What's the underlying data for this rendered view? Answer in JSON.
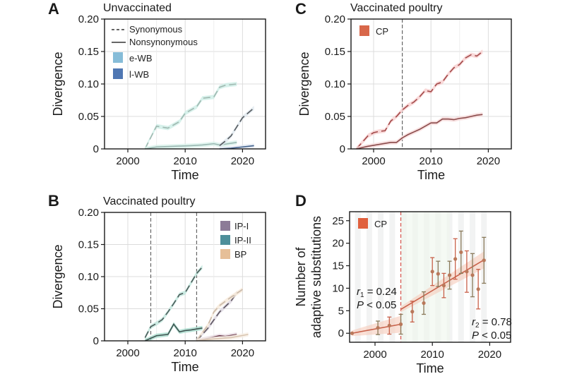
{
  "chart_data": [
    {
      "panel": "A",
      "type": "line",
      "title": "Unvaccinated",
      "xlabel": "Time",
      "ylabel": "Divergence",
      "xlim": [
        1996,
        2024
      ],
      "ylim": [
        0,
        0.2
      ],
      "xticks": [
        "2000",
        "2010",
        "2020"
      ],
      "yticks": [
        "0",
        "0.05",
        "0.10",
        "0.15",
        "0.20"
      ],
      "grid": true,
      "legend": {
        "placement": "top-left",
        "line_styles": [
          {
            "label": "Synonymous",
            "style": "dashed"
          },
          {
            "label": "Nonsynonymous",
            "style": "solid"
          }
        ],
        "groups": [
          {
            "label": "e-WB",
            "color": "#86bcd8"
          },
          {
            "label": "l-WB",
            "color": "#4f77b3"
          }
        ]
      },
      "series": [
        {
          "name": "e-WB Synonymous",
          "group": "e-WB",
          "style": "dashed",
          "color": "#9fb8b0",
          "band": "#cdeee6",
          "x": [
            2003,
            2005,
            2007,
            2009,
            2010,
            2012,
            2013,
            2015,
            2016,
            2017,
            2019
          ],
          "y": [
            0,
            0.035,
            0.032,
            0.042,
            0.055,
            0.065,
            0.078,
            0.08,
            0.095,
            0.098,
            0.1
          ]
        },
        {
          "name": "e-WB Nonsynonymous",
          "group": "e-WB",
          "style": "solid",
          "color": "#9ab8b2",
          "band": "#d8f1ea",
          "x": [
            2003,
            2005,
            2008,
            2011,
            2013,
            2015,
            2016,
            2019
          ],
          "y": [
            0,
            0.003,
            0.004,
            0.005,
            0.006,
            0.008,
            0.006,
            0.01
          ]
        },
        {
          "name": "l-WB Synonymous",
          "group": "l-WB",
          "style": "dashed",
          "color": "#555a5e",
          "band": "#dfe7ee",
          "x": [
            2016,
            2017,
            2018,
            2020,
            2022
          ],
          "y": [
            0.005,
            0.012,
            0.02,
            0.048,
            0.063
          ]
        },
        {
          "name": "l-WB Nonsynonymous",
          "group": "l-WB",
          "style": "solid",
          "color": "#3e5f8a",
          "band": "#e2e8f2",
          "x": [
            2016,
            2018,
            2020,
            2022
          ],
          "y": [
            0,
            0.001,
            0.003,
            0.005
          ]
        }
      ]
    },
    {
      "panel": "B",
      "type": "line",
      "title": "Vaccinated poultry",
      "xlabel": "Time",
      "ylabel": "Divergence",
      "xlim": [
        1996,
        2024
      ],
      "ylim": [
        0,
        0.2
      ],
      "xticks": [
        "2000",
        "2010",
        "2020"
      ],
      "yticks": [
        "0",
        "0.05",
        "0.10",
        "0.15",
        "0.20"
      ],
      "grid": true,
      "vlines": [
        2004,
        2012
      ],
      "legend": {
        "placement": "top-right",
        "groups": [
          {
            "label": "IP-I",
            "color": "#8c7b97"
          },
          {
            "label": "IP-II",
            "color": "#4e8f9a"
          },
          {
            "label": "BP",
            "color": "#e6bf98"
          }
        ]
      },
      "series": [
        {
          "name": "IP-II Synonymous",
          "group": "IP-II",
          "style": "dashed",
          "color": "#4a5a58",
          "band": "#bfe6dc",
          "x": [
            2003,
            2004,
            2005,
            2006,
            2007,
            2008,
            2009,
            2010,
            2011,
            2012,
            2013
          ],
          "y": [
            0.005,
            0.022,
            0.027,
            0.033,
            0.045,
            0.058,
            0.072,
            0.075,
            0.09,
            0.105,
            0.115
          ]
        },
        {
          "name": "IP-II Nonsynonymous",
          "group": "IP-II",
          "style": "solid",
          "color": "#3f5552",
          "band": "#a9dccd",
          "x": [
            2003,
            2004,
            2005,
            2007,
            2008,
            2009,
            2010,
            2011,
            2013
          ],
          "y": [
            0,
            0.004,
            0.008,
            0.01,
            0.026,
            0.014,
            0.016,
            0.017,
            0.02
          ]
        },
        {
          "name": "IP-I Synonymous",
          "group": "IP-I",
          "style": "dashed",
          "color": "#5d5560",
          "band": "#dcd6e0",
          "x": [
            2012,
            2014,
            2016,
            2018,
            2019
          ],
          "y": [
            0,
            0.02,
            0.045,
            0.062,
            0.075
          ]
        },
        {
          "name": "IP-I Nonsynonymous",
          "group": "IP-I",
          "style": "solid",
          "color": "#6b3b4c",
          "band": "#eadfe6",
          "x": [
            2012,
            2014,
            2016,
            2017,
            2019
          ],
          "y": [
            0,
            0.004,
            0.008,
            0.007,
            0.01
          ]
        },
        {
          "name": "BP Synonymous",
          "group": "BP",
          "style": "dashed",
          "color": "#c9b8a8",
          "band": "#f6e8d8",
          "x": [
            2012,
            2014,
            2015,
            2016,
            2018,
            2020
          ],
          "y": [
            0,
            0.025,
            0.045,
            0.055,
            0.068,
            0.08
          ]
        },
        {
          "name": "BP Nonsynonymous",
          "group": "BP",
          "style": "solid",
          "color": "#d8c4b0",
          "band": "#f8efe5",
          "x": [
            2012,
            2015,
            2018,
            2021
          ],
          "y": [
            0,
            0.003,
            0.005,
            0.01
          ]
        }
      ]
    },
    {
      "panel": "C",
      "type": "line",
      "title": "Vaccinated poultry",
      "xlabel": "Time",
      "ylabel": "Divergence",
      "xlim": [
        1996,
        2024
      ],
      "ylim": [
        0,
        0.2
      ],
      "xticks": [
        "2000",
        "2010",
        "2020"
      ],
      "yticks": [
        "0",
        "0.05",
        "0.10",
        "0.15",
        "0.20"
      ],
      "grid": true,
      "vlines": [
        2005
      ],
      "legend": {
        "placement": "top-left",
        "groups": [
          {
            "label": "CP",
            "color": "#d8674a"
          }
        ]
      },
      "series": [
        {
          "name": "CP Synonymous",
          "group": "CP",
          "style": "dashed",
          "color": "#a14848",
          "band": "#f7d0d0",
          "x": [
            1997,
            1998,
            1999,
            2000,
            2001,
            2002,
            2003,
            2004,
            2005,
            2006,
            2007,
            2008,
            2009,
            2010,
            2011,
            2012,
            2013,
            2014,
            2015,
            2016,
            2017,
            2018,
            2019
          ],
          "y": [
            0,
            0.01,
            0.02,
            0.025,
            0.027,
            0.028,
            0.043,
            0.05,
            0.06,
            0.067,
            0.072,
            0.08,
            0.09,
            0.088,
            0.1,
            0.103,
            0.115,
            0.125,
            0.13,
            0.14,
            0.145,
            0.143,
            0.15
          ]
        },
        {
          "name": "CP Nonsynonymous",
          "group": "CP",
          "style": "solid",
          "color": "#8a4a4a",
          "band": "#f6dada",
          "x": [
            1997,
            1999,
            2001,
            2003,
            2004,
            2005,
            2006,
            2007,
            2008,
            2009,
            2010,
            2011,
            2012,
            2013,
            2014,
            2015,
            2016,
            2017,
            2018,
            2019
          ],
          "y": [
            0,
            0.004,
            0.007,
            0.01,
            0.01,
            0.017,
            0.022,
            0.026,
            0.03,
            0.035,
            0.04,
            0.04,
            0.046,
            0.046,
            0.045,
            0.047,
            0.048,
            0.05,
            0.052,
            0.053
          ]
        }
      ]
    },
    {
      "panel": "D",
      "type": "scatter",
      "title": "",
      "xlabel": "Time",
      "ylabel": "Number of adaptive substitutions",
      "ylabel_lines": [
        "Number of",
        "adaptive substitutions"
      ],
      "xlim": [
        1996,
        2024
      ],
      "ylim": [
        -2,
        27
      ],
      "xticks": [
        "2000",
        "2010",
        "2020"
      ],
      "yticks": [
        "0",
        "5",
        "10",
        "15",
        "20",
        "25"
      ],
      "grid": false,
      "vlines": [
        2004.5
      ],
      "legend": {
        "placement": "top-left",
        "groups": [
          {
            "label": "CP",
            "color": "#e0603d"
          }
        ]
      },
      "points": [
        {
          "x": 1996,
          "y": 0,
          "err": 0
        },
        {
          "x": 2000.5,
          "y": 1.2,
          "err": 1.5
        },
        {
          "x": 2002.5,
          "y": 1.7,
          "err": 1.9
        },
        {
          "x": 2004.5,
          "y": 2,
          "err": 2.2
        },
        {
          "x": 2006.5,
          "y": 4.8,
          "err": 2.3
        },
        {
          "x": 2008.5,
          "y": 6.7,
          "err": 2.5
        },
        {
          "x": 2010,
          "y": 13.7,
          "err": 3.1
        },
        {
          "x": 2011,
          "y": 13.2,
          "err": 2.8
        },
        {
          "x": 2012,
          "y": 10.6,
          "err": 2.7
        },
        {
          "x": 2013,
          "y": 12.9,
          "err": 3.1
        },
        {
          "x": 2014,
          "y": 16.5,
          "err": 4.5
        },
        {
          "x": 2015,
          "y": 18,
          "err": 4.7
        },
        {
          "x": 2016,
          "y": 13.7,
          "err": 4.6
        },
        {
          "x": 2017,
          "y": 12.9,
          "err": 4.8
        },
        {
          "x": 2018,
          "y": 9.8,
          "err": 4.4
        },
        {
          "x": 2019,
          "y": 16.2,
          "err": 5.1
        }
      ],
      "fits": [
        {
          "name": "r1",
          "x": [
            1996,
            2004.5
          ],
          "y": [
            0,
            2
          ]
        },
        {
          "name": "r2",
          "x": [
            2004.5,
            2019
          ],
          "y": [
            5.3,
            16.3
          ]
        }
      ],
      "annotations": [
        {
          "line1_var": "r",
          "line1_sub": "1",
          "line1_rest": " = 0.24",
          "line2": "P < 0.05"
        },
        {
          "line1_var": "r",
          "line1_sub": "2",
          "line1_rest": " = 0.78",
          "line2": "P < 0.05"
        }
      ]
    }
  ]
}
